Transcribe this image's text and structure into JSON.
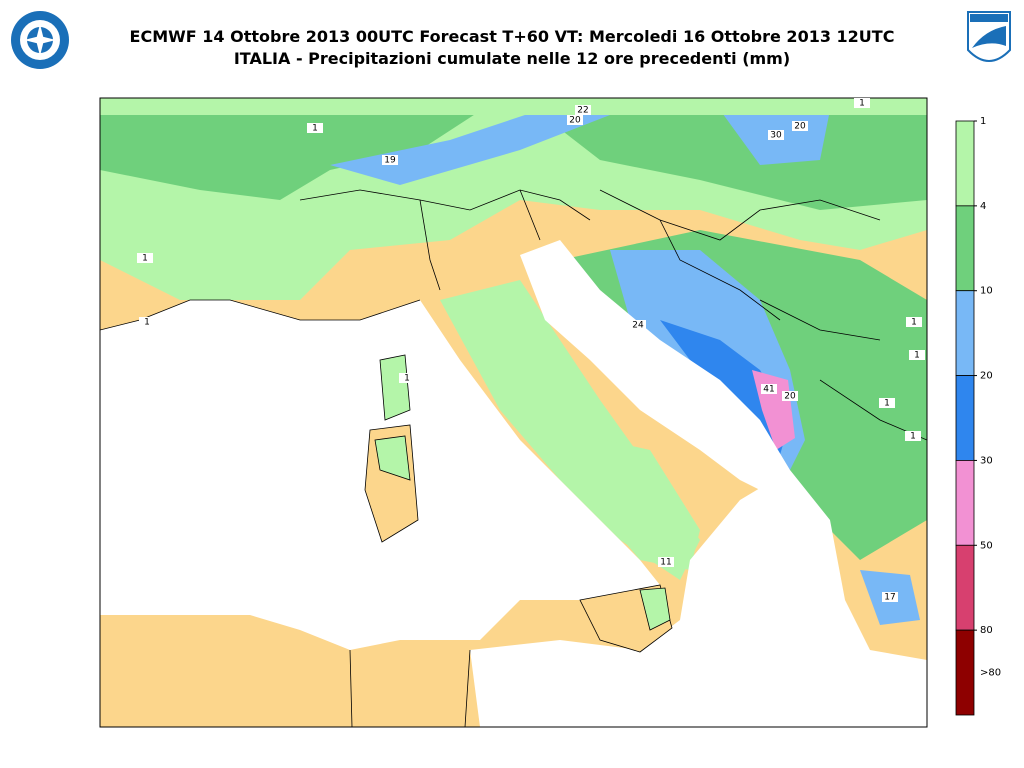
{
  "header": {
    "title_line1": "ECMWF 14 Ottobre 2013 00UTC Forecast T+60 VT: Mercoledi 16 Ottobre 2013 12UTC",
    "title_line2": "ITALIA - Precipitazioni cumulate nelle 12 ore precedenti (mm)"
  },
  "colorbar": {
    "ticks": [
      1,
      4,
      10,
      20,
      30,
      50,
      80
    ],
    "overflow_label": ">80",
    "colors": [
      "#b4f5a9",
      "#6fd07c",
      "#78b8f6",
      "#2f86ee",
      "#f291d3",
      "#d7406f",
      "#8e0000"
    ]
  },
  "map": {
    "land_color": "#fcd68c",
    "sea_color": "#ffffff",
    "contour_labels": [
      1,
      22,
      20,
      30,
      20,
      19,
      1,
      1,
      1,
      24,
      41,
      20,
      11,
      17,
      1,
      1,
      1,
      1,
      1
    ]
  }
}
